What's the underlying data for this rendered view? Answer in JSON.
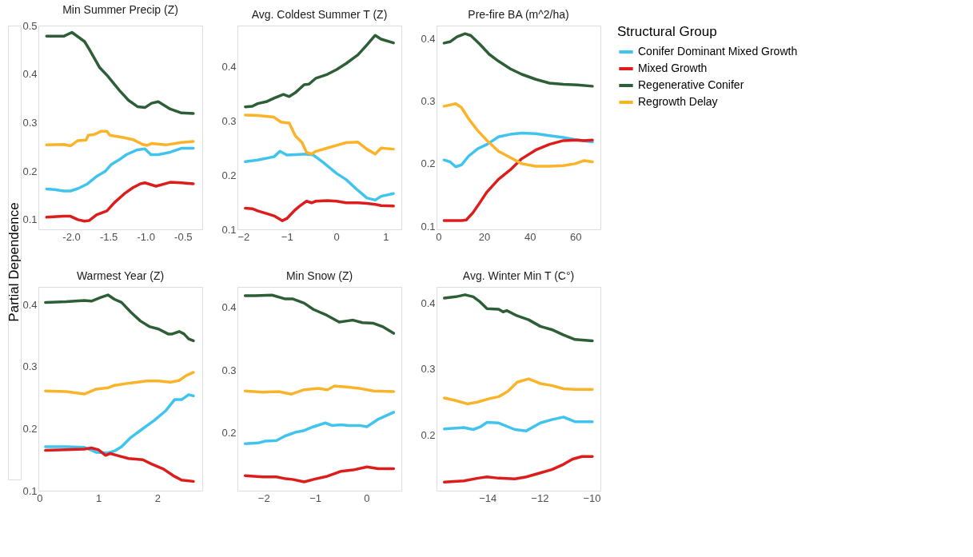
{
  "chart_data": [
    {
      "type": "line",
      "title": "Min Summer Precip (Z)",
      "ylabel": "Partial Dependence",
      "legend_title": "Structural Group",
      "legend": "right",
      "grid": false,
      "xlim": [
        -2.44,
        -0.24
      ],
      "xticks": [
        {
          "value": -2,
          "label": "-2.0"
        },
        {
          "value": -1.5,
          "label": "-1.5"
        },
        {
          "value": -1,
          "label": "-1.0"
        },
        {
          "value": -0.5,
          "label": "-0.5"
        }
      ],
      "ylim": [
        0.08,
        0.5
      ],
      "yticks": [
        0.1,
        0.2,
        0.3,
        0.4,
        0.5
      ],
      "series": [
        {
          "name": "Conifer Dominant Mixed Growth",
          "color": "#40c4ee",
          "x": [
            -2.33,
            -2.22,
            -2.1,
            -2.01,
            -1.91,
            -1.79,
            -1.66,
            -1.54,
            -1.46,
            -1.35,
            -1.26,
            -1.11,
            -1.01,
            -0.93,
            -0.83,
            -0.67,
            -0.52,
            -0.36
          ],
          "values": [
            0.163,
            0.162,
            0.159,
            0.159,
            0.164,
            0.173,
            0.189,
            0.2,
            0.214,
            0.224,
            0.234,
            0.244,
            0.246,
            0.234,
            0.234,
            0.239,
            0.247,
            0.247
          ]
        },
        {
          "name": "Mixed Growth",
          "color": "#dd1c1c",
          "x": [
            -2.33,
            -2.1,
            -2.01,
            -1.91,
            -1.82,
            -1.76,
            -1.66,
            -1.52,
            -1.42,
            -1.29,
            -1.17,
            -1.07,
            -1.01,
            -0.86,
            -0.67,
            -0.52,
            -0.36
          ],
          "values": [
            0.105,
            0.107,
            0.107,
            0.1,
            0.097,
            0.098,
            0.11,
            0.118,
            0.135,
            0.153,
            0.166,
            0.174,
            0.176,
            0.169,
            0.177,
            0.176,
            0.174
          ]
        },
        {
          "name": "Regenerative Conifer",
          "color": "#2e5e36",
          "x": [
            -2.33,
            -2.1,
            -1.99,
            -1.82,
            -1.76,
            -1.62,
            -1.51,
            -1.35,
            -1.23,
            -1.11,
            -1.01,
            -0.92,
            -0.83,
            -0.67,
            -0.52,
            -0.36
          ],
          "values": [
            0.478,
            0.478,
            0.486,
            0.467,
            0.452,
            0.414,
            0.396,
            0.366,
            0.346,
            0.333,
            0.331,
            0.34,
            0.343,
            0.328,
            0.32,
            0.319
          ]
        },
        {
          "name": "Regrowth Delay",
          "color": "#fbb32a",
          "x": [
            -2.33,
            -2.1,
            -2.01,
            -1.91,
            -1.8,
            -1.77,
            -1.7,
            -1.6,
            -1.52,
            -1.48,
            -1.29,
            -1.17,
            -1.04,
            -0.98,
            -0.92,
            -0.73,
            -0.52,
            -0.36
          ],
          "values": [
            0.254,
            0.255,
            0.252,
            0.263,
            0.264,
            0.274,
            0.275,
            0.282,
            0.282,
            0.274,
            0.269,
            0.265,
            0.255,
            0.253,
            0.257,
            0.254,
            0.259,
            0.261
          ]
        }
      ]
    },
    {
      "type": "line",
      "title": "Avg. Coldest Summer T (Z)",
      "grid": false,
      "xlim": [
        -2,
        1.32
      ],
      "xticks": [
        -2,
        -1,
        0,
        1
      ],
      "ylim": [
        0.1,
        0.476
      ],
      "yticks": [
        0.1,
        0.2,
        0.3,
        0.4
      ],
      "series": [
        {
          "name": "Conifer Dominant Mixed Growth",
          "color": "#40c4ee",
          "x": [
            -1.84,
            -1.59,
            -1.26,
            -1.14,
            -1.0,
            -0.83,
            -0.6,
            -0.46,
            -0.27,
            0.01,
            0.2,
            0.44,
            0.62,
            0.79,
            0.91,
            1.16
          ],
          "values": [
            0.225,
            0.228,
            0.234,
            0.244,
            0.237,
            0.238,
            0.239,
            0.237,
            0.224,
            0.203,
            0.192,
            0.172,
            0.158,
            0.154,
            0.161,
            0.166
          ]
        },
        {
          "name": "Mixed Growth",
          "color": "#dd1c1c",
          "x": [
            -1.84,
            -1.7,
            -1.59,
            -1.4,
            -1.26,
            -1.09,
            -1.0,
            -0.83,
            -0.74,
            -0.6,
            -0.5,
            -0.41,
            -0.18,
            0.01,
            0.2,
            0.44,
            0.62,
            0.79,
            0.91,
            1.16
          ],
          "values": [
            0.139,
            0.138,
            0.134,
            0.129,
            0.125,
            0.116,
            0.12,
            0.136,
            0.143,
            0.152,
            0.149,
            0.152,
            0.153,
            0.152,
            0.149,
            0.149,
            0.148,
            0.146,
            0.144,
            0.143
          ]
        },
        {
          "name": "Regenerative Conifer",
          "color": "#2e5e36",
          "x": [
            -1.84,
            -1.7,
            -1.59,
            -1.4,
            -1.26,
            -1.07,
            -0.95,
            -0.83,
            -0.65,
            -0.55,
            -0.41,
            -0.18,
            0.01,
            0.2,
            0.44,
            0.62,
            0.79,
            0.91,
            1.16
          ],
          "values": [
            0.326,
            0.327,
            0.332,
            0.336,
            0.342,
            0.349,
            0.345,
            0.352,
            0.367,
            0.368,
            0.379,
            0.386,
            0.395,
            0.406,
            0.422,
            0.44,
            0.458,
            0.451,
            0.444
          ]
        },
        {
          "name": "Regrowth Delay",
          "color": "#fbb32a",
          "x": [
            -1.84,
            -1.59,
            -1.26,
            -1.12,
            -0.95,
            -0.83,
            -0.69,
            -0.6,
            -0.5,
            -0.41,
            -0.18,
            0.01,
            0.2,
            0.44,
            0.62,
            0.79,
            0.91,
            1.16
          ],
          "values": [
            0.311,
            0.31,
            0.307,
            0.298,
            0.296,
            0.273,
            0.26,
            0.242,
            0.239,
            0.244,
            0.25,
            0.255,
            0.26,
            0.261,
            0.248,
            0.239,
            0.25,
            0.248
          ]
        }
      ]
    },
    {
      "type": "line",
      "title": "Pre-fire BA (m^2/ha)",
      "grid": false,
      "xlim": [
        -0.8,
        70.9
      ],
      "xticks": [
        0,
        20,
        40,
        60
      ],
      "ylim": [
        0.095,
        0.421
      ],
      "yticks": [
        0.1,
        0.2,
        0.3,
        0.4
      ],
      "series": [
        {
          "name": "Conifer Dominant Mixed Growth",
          "color": "#40c4ee",
          "x": [
            2.5,
            5.1,
            7.6,
            10.1,
            13.2,
            17.2,
            21.3,
            26.3,
            31.4,
            36.5,
            42.6,
            48.6,
            54.7,
            60.8,
            67.4
          ],
          "values": [
            0.206,
            0.203,
            0.195,
            0.198,
            0.212,
            0.224,
            0.231,
            0.243,
            0.247,
            0.249,
            0.248,
            0.245,
            0.242,
            0.238,
            0.235
          ]
        },
        {
          "name": "Mixed Growth",
          "color": "#dd1c1c",
          "x": [
            2.5,
            5.1,
            10.1,
            12.2,
            15.2,
            18.2,
            21.3,
            26.3,
            31.4,
            36.5,
            42.6,
            48.6,
            54.7,
            60.8,
            63.8,
            67.4
          ],
          "values": [
            0.109,
            0.109,
            0.109,
            0.11,
            0.122,
            0.138,
            0.155,
            0.175,
            0.19,
            0.208,
            0.222,
            0.231,
            0.237,
            0.238,
            0.237,
            0.238
          ]
        },
        {
          "name": "Regenerative Conifer",
          "color": "#2e5e36",
          "x": [
            2.5,
            5.1,
            8.1,
            11.7,
            14.2,
            18.2,
            22.3,
            26.3,
            31.4,
            36.5,
            42.6,
            48.6,
            54.7,
            60.8,
            67.4
          ],
          "values": [
            0.393,
            0.395,
            0.403,
            0.408,
            0.405,
            0.391,
            0.375,
            0.364,
            0.352,
            0.343,
            0.335,
            0.329,
            0.327,
            0.326,
            0.324
          ]
        },
        {
          "name": "Regrowth Delay",
          "color": "#fbb32a",
          "x": [
            2.5,
            5.1,
            7.6,
            10.1,
            13.2,
            17.2,
            21.3,
            26.3,
            31.4,
            36.5,
            42.6,
            48.6,
            54.7,
            59.8,
            63.8,
            67.4
          ],
          "values": [
            0.292,
            0.294,
            0.296,
            0.29,
            0.272,
            0.253,
            0.237,
            0.22,
            0.21,
            0.2,
            0.196,
            0.196,
            0.197,
            0.2,
            0.205,
            0.203
          ]
        }
      ]
    },
    {
      "type": "line",
      "title": "Warmest Year (Z)",
      "grid": false,
      "xlim": [
        -0.02,
        2.76
      ],
      "xticks": [
        0,
        1,
        2
      ],
      "ylim": [
        0.1,
        0.429
      ],
      "yticks": [
        0.1,
        0.2,
        0.3,
        0.4
      ],
      "series": [
        {
          "name": "Conifer Dominant Mixed Growth",
          "color": "#40c4ee",
          "x": [
            0.1,
            0.45,
            0.76,
            0.96,
            1.16,
            1.27,
            1.39,
            1.55,
            1.75,
            1.94,
            2.14,
            2.29,
            2.41,
            2.53,
            2.61
          ],
          "values": [
            0.171,
            0.171,
            0.17,
            0.162,
            0.161,
            0.164,
            0.171,
            0.186,
            0.2,
            0.213,
            0.229,
            0.247,
            0.247,
            0.255,
            0.253
          ]
        },
        {
          "name": "Mixed Growth",
          "color": "#dd1c1c",
          "x": [
            0.1,
            0.45,
            0.76,
            0.88,
            1.0,
            1.12,
            1.2,
            1.35,
            1.51,
            1.75,
            1.9,
            2.1,
            2.29,
            2.41,
            2.61
          ],
          "values": [
            0.165,
            0.166,
            0.167,
            0.169,
            0.166,
            0.157,
            0.16,
            0.156,
            0.152,
            0.15,
            0.143,
            0.135,
            0.123,
            0.117,
            0.115
          ]
        },
        {
          "name": "Regenerative Conifer",
          "color": "#2e5e36",
          "x": [
            0.1,
            0.45,
            0.76,
            0.88,
            1.04,
            1.16,
            1.27,
            1.39,
            1.55,
            1.71,
            1.86,
            2.02,
            2.18,
            2.25,
            2.37,
            2.45,
            2.53,
            2.61
          ],
          "values": [
            0.404,
            0.405,
            0.407,
            0.406,
            0.412,
            0.416,
            0.409,
            0.404,
            0.388,
            0.374,
            0.365,
            0.361,
            0.353,
            0.353,
            0.357,
            0.353,
            0.345,
            0.342
          ]
        },
        {
          "name": "Regrowth Delay",
          "color": "#fbb32a",
          "x": [
            0.1,
            0.45,
            0.76,
            0.96,
            1.16,
            1.27,
            1.55,
            1.82,
            2.02,
            2.22,
            2.37,
            2.49,
            2.61
          ],
          "values": [
            0.261,
            0.26,
            0.256,
            0.264,
            0.266,
            0.27,
            0.274,
            0.277,
            0.277,
            0.275,
            0.278,
            0.286,
            0.291
          ]
        }
      ]
    },
    {
      "type": "line",
      "title": "Min Snow (Z)",
      "grid": false,
      "xlim": [
        -2.51,
        0.68
      ],
      "xticks": [
        -2,
        -1,
        0
      ],
      "ylim": [
        0.108,
        0.433
      ],
      "yticks": [
        0.2,
        0.3,
        0.4
      ],
      "series": [
        {
          "name": "Conifer Dominant Mixed Growth",
          "color": "#40c4ee",
          "x": [
            -2.36,
            -2.11,
            -1.97,
            -1.75,
            -1.59,
            -1.39,
            -1.21,
            -1.03,
            -0.8,
            -0.67,
            -0.49,
            -0.35,
            -0.13,
            0.01,
            0.23,
            0.53
          ],
          "values": [
            0.183,
            0.184,
            0.187,
            0.188,
            0.195,
            0.201,
            0.204,
            0.21,
            0.216,
            0.212,
            0.213,
            0.212,
            0.212,
            0.21,
            0.222,
            0.233
          ]
        },
        {
          "name": "Mixed Growth",
          "color": "#dd1c1c",
          "x": [
            -2.36,
            -2.02,
            -1.75,
            -1.57,
            -1.44,
            -1.21,
            -1.03,
            -0.76,
            -0.49,
            -0.26,
            0.01,
            0.23,
            0.53
          ],
          "values": [
            0.132,
            0.13,
            0.13,
            0.127,
            0.126,
            0.122,
            0.126,
            0.131,
            0.139,
            0.141,
            0.146,
            0.143,
            0.143
          ]
        },
        {
          "name": "Regenerative Conifer",
          "color": "#2e5e36",
          "x": [
            -2.36,
            -2.16,
            -1.84,
            -1.59,
            -1.44,
            -1.21,
            -1.03,
            -0.8,
            -0.53,
            -0.35,
            -0.26,
            -0.08,
            0.14,
            0.33,
            0.53
          ],
          "values": [
            0.419,
            0.419,
            0.42,
            0.414,
            0.414,
            0.407,
            0.397,
            0.389,
            0.377,
            0.379,
            0.38,
            0.376,
            0.375,
            0.369,
            0.359
          ]
        },
        {
          "name": "Regrowth Delay",
          "color": "#fbb32a",
          "x": [
            -2.36,
            -2.02,
            -1.71,
            -1.46,
            -1.21,
            -0.94,
            -0.76,
            -0.62,
            -0.35,
            -0.13,
            0.14,
            0.53
          ],
          "values": [
            0.267,
            0.265,
            0.266,
            0.262,
            0.269,
            0.271,
            0.269,
            0.275,
            0.273,
            0.271,
            0.267,
            0.266
          ]
        }
      ]
    },
    {
      "type": "line",
      "title": "Avg. Winter Min T (C°)",
      "grid": false,
      "xlim": [
        -15.96,
        -9.66
      ],
      "xticks": [
        -14,
        -12,
        -10
      ],
      "ylim": [
        0.115,
        0.425
      ],
      "yticks": [
        0.2,
        0.3,
        0.4
      ],
      "series": [
        {
          "name": "Conifer Dominant Mixed Growth",
          "color": "#40c4ee",
          "x": [
            -15.66,
            -14.91,
            -14.55,
            -14.28,
            -14.02,
            -13.57,
            -12.95,
            -12.51,
            -11.97,
            -11.53,
            -11.08,
            -10.64,
            -9.97
          ],
          "values": [
            0.209,
            0.211,
            0.208,
            0.212,
            0.219,
            0.218,
            0.208,
            0.206,
            0.218,
            0.223,
            0.227,
            0.22,
            0.22
          ]
        },
        {
          "name": "Mixed Growth",
          "color": "#dd1c1c",
          "x": [
            -15.66,
            -14.91,
            -14.37,
            -14.02,
            -13.57,
            -12.95,
            -12.51,
            -11.97,
            -11.53,
            -11.08,
            -10.73,
            -10.37,
            -9.97
          ],
          "values": [
            0.128,
            0.13,
            0.134,
            0.136,
            0.134,
            0.133,
            0.136,
            0.142,
            0.147,
            0.155,
            0.163,
            0.167,
            0.167
          ]
        },
        {
          "name": "Regenerative Conifer",
          "color": "#2e5e36",
          "x": [
            -15.66,
            -15.22,
            -14.86,
            -14.55,
            -14.28,
            -14.02,
            -13.57,
            -13.4,
            -13.26,
            -12.86,
            -12.42,
            -11.97,
            -11.53,
            -11.08,
            -10.64,
            -9.97
          ],
          "values": [
            0.408,
            0.41,
            0.413,
            0.41,
            0.402,
            0.392,
            0.391,
            0.387,
            0.389,
            0.381,
            0.375,
            0.365,
            0.36,
            0.352,
            0.345,
            0.343
          ]
        },
        {
          "name": "Regrowth Delay",
          "color": "#fbb32a",
          "x": [
            -15.66,
            -15.22,
            -14.77,
            -14.37,
            -13.93,
            -13.57,
            -13.22,
            -12.86,
            -12.42,
            -11.97,
            -11.53,
            -11.08,
            -10.64,
            -9.97
          ],
          "values": [
            0.256,
            0.252,
            0.247,
            0.25,
            0.255,
            0.258,
            0.266,
            0.28,
            0.285,
            0.278,
            0.275,
            0.27,
            0.269,
            0.269
          ]
        }
      ]
    }
  ]
}
